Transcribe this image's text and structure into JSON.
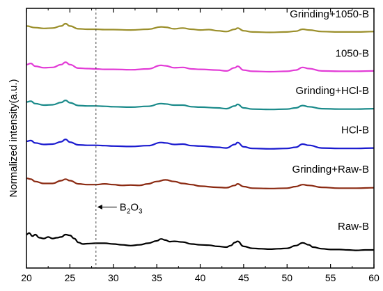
{
  "chart_data": {
    "type": "line",
    "title": "",
    "xlabel": "",
    "ylabel": "Normalized intensity(a.u.)",
    "xlim": [
      20,
      60
    ],
    "x_ticks": [
      "20",
      "25",
      "30",
      "35",
      "40",
      "45",
      "50",
      "55",
      "60"
    ],
    "y_ticks": "none",
    "grid": false,
    "legend": "none",
    "annotation": {
      "label_main": "B",
      "label_sub1": "2",
      "label_mid": "O",
      "label_sub2": "3",
      "x": 28,
      "line_style": "dashed"
    },
    "series": [
      {
        "name": "Grinding+1050-B",
        "color": "#9b8f2b",
        "baseline": 6.05,
        "points": [
          [
            20,
            0.1
          ],
          [
            21,
            0.06
          ],
          [
            22,
            0.04
          ],
          [
            23,
            0.05
          ],
          [
            24,
            0.1
          ],
          [
            24.5,
            0.16
          ],
          [
            25,
            0.1
          ],
          [
            26,
            0.03
          ],
          [
            27,
            0.02
          ],
          [
            28,
            0.02
          ],
          [
            29,
            0.01
          ],
          [
            30,
            0.01
          ],
          [
            32,
            0.0
          ],
          [
            34,
            0.02
          ],
          [
            35.5,
            0.08
          ],
          [
            36,
            0.07
          ],
          [
            37,
            0.03
          ],
          [
            38,
            0.05
          ],
          [
            39,
            0.02
          ],
          [
            40,
            0.0
          ],
          [
            41,
            0.01
          ],
          [
            42,
            -0.02
          ],
          [
            43,
            -0.04
          ],
          [
            44,
            0.02
          ],
          [
            44.3,
            0.05
          ],
          [
            45,
            -0.02
          ],
          [
            46,
            -0.05
          ],
          [
            48,
            -0.06
          ],
          [
            50,
            -0.05
          ],
          [
            51,
            -0.03
          ],
          [
            51.8,
            0.02
          ],
          [
            52.5,
            0.0
          ],
          [
            54,
            -0.04
          ],
          [
            56,
            -0.05
          ],
          [
            58,
            -0.05
          ],
          [
            60,
            -0.04
          ]
        ]
      },
      {
        "name": "1050-B",
        "color": "#e23bd6",
        "baseline": 5.05,
        "points": [
          [
            20,
            0.12
          ],
          [
            20.5,
            0.15
          ],
          [
            21,
            0.08
          ],
          [
            22,
            0.04
          ],
          [
            23,
            0.05
          ],
          [
            24,
            0.12
          ],
          [
            24.5,
            0.18
          ],
          [
            25,
            0.12
          ],
          [
            26,
            0.03
          ],
          [
            27,
            0.02
          ],
          [
            28,
            0.01
          ],
          [
            29,
            0.0
          ],
          [
            30,
            0.0
          ],
          [
            32,
            -0.01
          ],
          [
            34,
            0.01
          ],
          [
            35.5,
            0.1
          ],
          [
            36,
            0.09
          ],
          [
            37,
            0.04
          ],
          [
            38,
            0.05
          ],
          [
            39,
            0.01
          ],
          [
            40,
            0.0
          ],
          [
            42,
            -0.02
          ],
          [
            43,
            -0.04
          ],
          [
            44,
            0.04
          ],
          [
            44.3,
            0.08
          ],
          [
            45,
            -0.02
          ],
          [
            46,
            -0.05
          ],
          [
            48,
            -0.06
          ],
          [
            50,
            -0.05
          ],
          [
            51,
            -0.02
          ],
          [
            51.8,
            0.05
          ],
          [
            52.5,
            0.02
          ],
          [
            54,
            -0.04
          ],
          [
            56,
            -0.05
          ],
          [
            58,
            -0.05
          ],
          [
            60,
            -0.04
          ]
        ]
      },
      {
        "name": "Grinding+HCl-B",
        "color": "#1a8a8a",
        "baseline": 4.1,
        "points": [
          [
            20,
            0.12
          ],
          [
            20.5,
            0.14
          ],
          [
            21,
            0.08
          ],
          [
            22,
            0.04
          ],
          [
            23,
            0.05
          ],
          [
            24,
            0.11
          ],
          [
            24.5,
            0.16
          ],
          [
            25,
            0.1
          ],
          [
            26,
            0.03
          ],
          [
            27,
            0.02
          ],
          [
            28,
            0.02
          ],
          [
            29,
            0.01
          ],
          [
            30,
            0.0
          ],
          [
            32,
            -0.01
          ],
          [
            34,
            0.01
          ],
          [
            35.5,
            0.08
          ],
          [
            36,
            0.07
          ],
          [
            37,
            0.04
          ],
          [
            38,
            0.04
          ],
          [
            39,
            0.0
          ],
          [
            40,
            -0.01
          ],
          [
            42,
            -0.03
          ],
          [
            43,
            -0.05
          ],
          [
            44,
            0.02
          ],
          [
            44.3,
            0.06
          ],
          [
            45,
            -0.03
          ],
          [
            46,
            -0.06
          ],
          [
            48,
            -0.07
          ],
          [
            50,
            -0.06
          ],
          [
            51,
            -0.03
          ],
          [
            51.8,
            0.03
          ],
          [
            52.5,
            0.0
          ],
          [
            54,
            -0.05
          ],
          [
            56,
            -0.06
          ],
          [
            58,
            -0.06
          ],
          [
            60,
            -0.05
          ]
        ]
      },
      {
        "name": "HCl-B",
        "color": "#1a1acf",
        "baseline": 3.1,
        "points": [
          [
            20,
            0.12
          ],
          [
            20.5,
            0.14
          ],
          [
            21,
            0.08
          ],
          [
            22,
            0.04
          ],
          [
            23,
            0.05
          ],
          [
            24,
            0.11
          ],
          [
            24.5,
            0.17
          ],
          [
            25,
            0.1
          ],
          [
            26,
            0.03
          ],
          [
            27,
            0.02
          ],
          [
            28,
            0.02
          ],
          [
            29,
            0.01
          ],
          [
            30,
            0.0
          ],
          [
            32,
            -0.01
          ],
          [
            34,
            0.01
          ],
          [
            35.5,
            0.09
          ],
          [
            36,
            0.08
          ],
          [
            37,
            0.04
          ],
          [
            38,
            0.05
          ],
          [
            39,
            0.01
          ],
          [
            40,
            0.0
          ],
          [
            42,
            -0.03
          ],
          [
            43,
            -0.05
          ],
          [
            44,
            0.04
          ],
          [
            44.3,
            0.09
          ],
          [
            45,
            -0.02
          ],
          [
            46,
            -0.06
          ],
          [
            48,
            -0.07
          ],
          [
            50,
            -0.06
          ],
          [
            51,
            -0.03
          ],
          [
            51.8,
            0.05
          ],
          [
            52.5,
            0.02
          ],
          [
            54,
            -0.05
          ],
          [
            56,
            -0.06
          ],
          [
            58,
            -0.06
          ],
          [
            60,
            -0.05
          ]
        ]
      },
      {
        "name": "Grinding+Raw-B",
        "color": "#8b2a12",
        "baseline": 2.1,
        "points": [
          [
            20,
            0.18
          ],
          [
            20.5,
            0.16
          ],
          [
            21,
            0.1
          ],
          [
            22,
            0.05
          ],
          [
            23,
            0.05
          ],
          [
            24,
            0.12
          ],
          [
            24.5,
            0.16
          ],
          [
            25,
            0.12
          ],
          [
            26,
            0.04
          ],
          [
            27,
            0.02
          ],
          [
            28,
            0.02
          ],
          [
            29,
            0.04
          ],
          [
            30,
            0.02
          ],
          [
            31,
            0.0
          ],
          [
            32,
            0.01
          ],
          [
            33,
            0.0
          ],
          [
            34,
            0.04
          ],
          [
            35,
            0.1
          ],
          [
            36,
            0.14
          ],
          [
            37,
            0.1
          ],
          [
            38,
            0.05
          ],
          [
            39,
            0.02
          ],
          [
            40,
            -0.02
          ],
          [
            42,
            -0.05
          ],
          [
            43,
            -0.06
          ],
          [
            44,
            0.0
          ],
          [
            44.3,
            0.04
          ],
          [
            45,
            -0.03
          ],
          [
            46,
            -0.07
          ],
          [
            48,
            -0.08
          ],
          [
            50,
            -0.07
          ],
          [
            51,
            -0.03
          ],
          [
            51.8,
            0.02
          ],
          [
            52.5,
            0.0
          ],
          [
            54,
            -0.05
          ],
          [
            56,
            -0.07
          ],
          [
            58,
            -0.07
          ],
          [
            60,
            -0.06
          ]
        ]
      },
      {
        "name": "Raw-B",
        "color": "#000000",
        "baseline": 0.65,
        "points": [
          [
            20,
            0.2
          ],
          [
            20.3,
            0.24
          ],
          [
            20.7,
            0.16
          ],
          [
            21,
            0.2
          ],
          [
            21.5,
            0.12
          ],
          [
            22,
            0.1
          ],
          [
            22.5,
            0.14
          ],
          [
            23,
            0.1
          ],
          [
            23.5,
            0.12
          ],
          [
            24,
            0.14
          ],
          [
            24.5,
            0.2
          ],
          [
            25,
            0.18
          ],
          [
            25.5,
            0.1
          ],
          [
            26,
            0.0
          ],
          [
            26.5,
            -0.04
          ],
          [
            27,
            -0.03
          ],
          [
            28,
            -0.02
          ],
          [
            29,
            -0.02
          ],
          [
            30,
            -0.04
          ],
          [
            31,
            -0.06
          ],
          [
            32,
            -0.08
          ],
          [
            33,
            -0.06
          ],
          [
            34,
            -0.02
          ],
          [
            35,
            0.04
          ],
          [
            35.5,
            0.09
          ],
          [
            36,
            0.06
          ],
          [
            36.5,
            0.02
          ],
          [
            37,
            0.03
          ],
          [
            38,
            0.01
          ],
          [
            39,
            -0.04
          ],
          [
            40,
            -0.06
          ],
          [
            41,
            -0.07
          ],
          [
            42,
            -0.1
          ],
          [
            43,
            -0.12
          ],
          [
            43.5,
            -0.08
          ],
          [
            44,
            0.0
          ],
          [
            44.3,
            0.03
          ],
          [
            45,
            -0.1
          ],
          [
            46,
            -0.15
          ],
          [
            47,
            -0.16
          ],
          [
            48,
            -0.17
          ],
          [
            49,
            -0.16
          ],
          [
            50,
            -0.15
          ],
          [
            51,
            -0.08
          ],
          [
            51.8,
            -0.01
          ],
          [
            52.5,
            -0.06
          ],
          [
            53,
            -0.12
          ],
          [
            54,
            -0.16
          ],
          [
            55,
            -0.18
          ],
          [
            56,
            -0.18
          ],
          [
            57,
            -0.19
          ],
          [
            58,
            -0.2
          ],
          [
            59,
            -0.19
          ],
          [
            60,
            -0.19
          ]
        ]
      }
    ]
  }
}
